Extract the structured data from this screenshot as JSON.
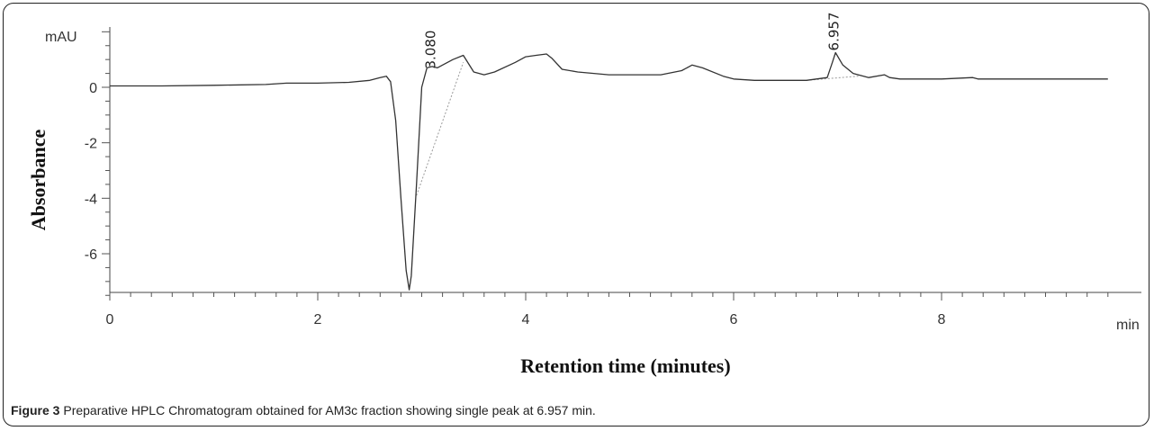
{
  "figure": {
    "label": "Figure 3",
    "text": "Preparative HPLC Chromatogram obtained for AM3c fraction showing single peak at 6.957 min."
  },
  "chart_data": {
    "type": "line",
    "xlabel": "Retention time (minutes)",
    "ylabel": "Absorbance",
    "x_unit": "min",
    "y_unit": "mAU",
    "xlim": [
      0,
      9.6
    ],
    "ylim": [
      -7.6,
      2.2
    ],
    "x_ticks": [
      0,
      2,
      4,
      6,
      8
    ],
    "y_ticks": [
      0,
      -2,
      -4,
      -6
    ],
    "grid": false,
    "peak_labels": [
      {
        "text": "3.080",
        "x": 3.08,
        "y": 0.6
      },
      {
        "text": "6.957",
        "x": 6.957,
        "y": 1.25
      }
    ],
    "series": [
      {
        "x": [
          0,
          0.5,
          1.0,
          1.5,
          1.7,
          2.0,
          2.3,
          2.5,
          2.6,
          2.66,
          2.7,
          2.75,
          2.8,
          2.85,
          2.88,
          2.9,
          2.95,
          3.0,
          3.05,
          3.1,
          3.15,
          3.2,
          3.3,
          3.4,
          3.5,
          3.6,
          3.7,
          3.9,
          4.0,
          4.1,
          4.2,
          4.25,
          4.35,
          4.5,
          4.8,
          5.0,
          5.3,
          5.5,
          5.6,
          5.7,
          5.9,
          6.0,
          6.2,
          6.5,
          6.7,
          6.9,
          6.95,
          6.98,
          7.05,
          7.15,
          7.3,
          7.45,
          7.5,
          7.6,
          8.0,
          8.3,
          8.35,
          8.5,
          9.0,
          9.6
        ],
        "y": [
          0.05,
          0.05,
          0.07,
          0.1,
          0.15,
          0.15,
          0.18,
          0.25,
          0.35,
          0.4,
          0.2,
          -1.2,
          -4.0,
          -6.6,
          -7.3,
          -6.8,
          -3.5,
          0.0,
          0.7,
          0.75,
          0.7,
          0.8,
          1.0,
          1.15,
          0.55,
          0.45,
          0.55,
          0.9,
          1.1,
          1.15,
          1.2,
          1.05,
          0.65,
          0.55,
          0.45,
          0.45,
          0.45,
          0.6,
          0.8,
          0.7,
          0.4,
          0.3,
          0.25,
          0.25,
          0.25,
          0.35,
          0.9,
          1.25,
          0.8,
          0.5,
          0.35,
          0.45,
          0.35,
          0.3,
          0.3,
          0.35,
          0.3,
          0.3,
          0.3,
          0.3
        ]
      }
    ]
  }
}
